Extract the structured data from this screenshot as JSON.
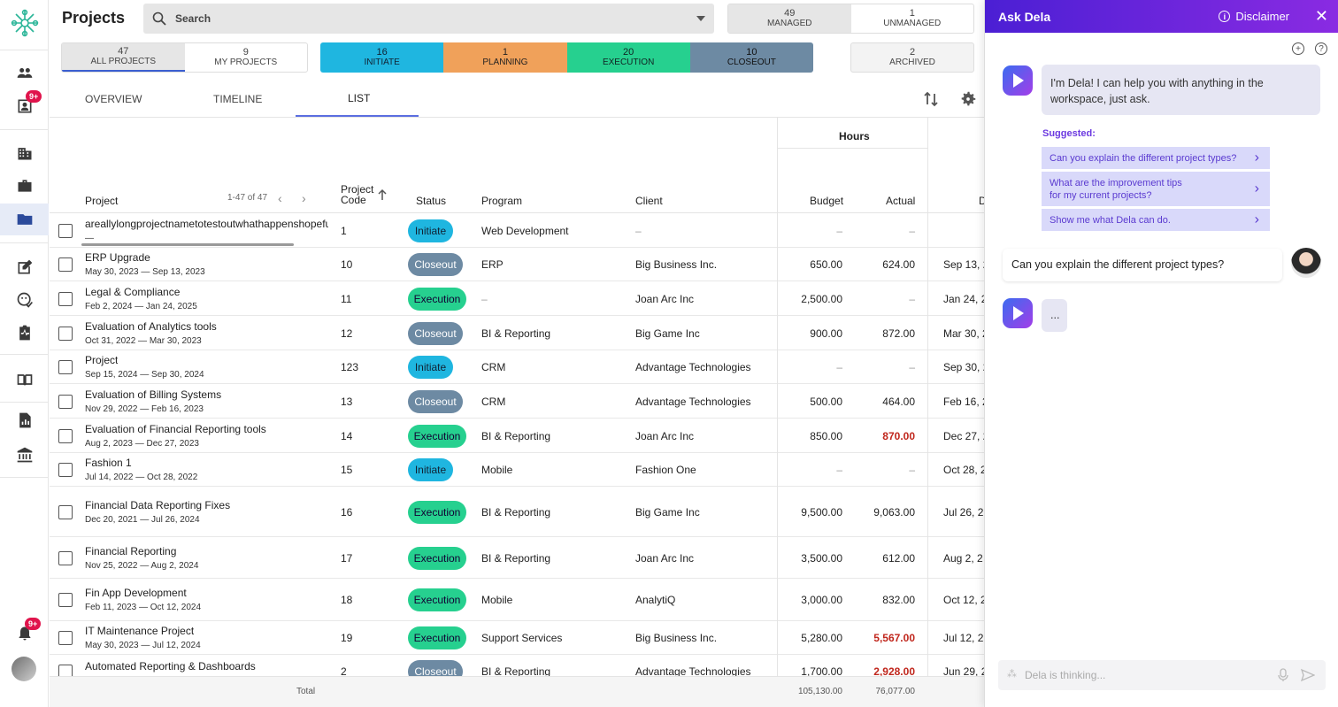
{
  "header": {
    "title": "Projects",
    "search_placeholder": "Search",
    "managed": {
      "count": "49",
      "label": "MANAGED"
    },
    "unmanaged": {
      "count": "1",
      "label": "UNMANAGED"
    }
  },
  "filters": {
    "all": {
      "count": "47",
      "label": "ALL PROJECTS"
    },
    "mine": {
      "count": "9",
      "label": "MY PROJECTS"
    },
    "initiate": {
      "count": "16",
      "label": "INITIATE"
    },
    "planning": {
      "count": "1",
      "label": "PLANNING"
    },
    "execution": {
      "count": "20",
      "label": "EXECUTION"
    },
    "closeout": {
      "count": "10",
      "label": "CLOSEOUT"
    },
    "archived": {
      "count": "2",
      "label": "ARCHIVED"
    }
  },
  "tabs": [
    "OVERVIEW",
    "TIMELINE",
    "LIST"
  ],
  "rail_badges": {
    "top": "9+",
    "bottom": "9+"
  },
  "table": {
    "group_hours": "Hours",
    "col_project": "Project",
    "pagination": "1-47 of 47",
    "col_code_1": "Project",
    "col_code_2": "Code",
    "col_status": "Status",
    "col_program": "Program",
    "col_client": "Client",
    "col_budget": "Budget",
    "col_actual": "Actual",
    "col_due": "D",
    "total_label": "Total",
    "total_budget": "105,130.00",
    "total_actual": "76,077.00",
    "rows": [
      {
        "name": "areallylongprojectnametotestoutwhathappenshopefully",
        "dates": "—",
        "code": "1",
        "status": "Initiate",
        "program": "Web Development",
        "client": "–",
        "budget": "–",
        "actual": "–",
        "due": ""
      },
      {
        "name": "ERP Upgrade",
        "dates": "May 30, 2023 — Sep 13, 2023",
        "code": "10",
        "status": "Closeout",
        "program": "ERP",
        "client": "Big Business Inc.",
        "budget": "650.00",
        "actual": "624.00",
        "due": "Sep 13, 2"
      },
      {
        "name": "Legal & Compliance",
        "dates": "Feb 2, 2024 — Jan 24, 2025",
        "code": "11",
        "status": "Execution",
        "program": "–",
        "client": "Joan Arc Inc",
        "budget": "2,500.00",
        "actual": "–",
        "due": "Jan 24, 2"
      },
      {
        "name": "Evaluation of Analytics tools",
        "dates": "Oct 31, 2022 — Mar 30, 2023",
        "code": "12",
        "status": "Closeout",
        "program": "BI & Reporting",
        "client": "Big Game Inc",
        "budget": "900.00",
        "actual": "872.00",
        "due": "Mar 30, 2"
      },
      {
        "name": "Project",
        "dates": "Sep 15, 2024 — Sep 30, 2024",
        "code": "123",
        "status": "Initiate",
        "program": "CRM",
        "client": "Advantage Technologies",
        "budget": "–",
        "actual": "–",
        "due": "Sep 30, 2"
      },
      {
        "name": "Evaluation of Billing Systems",
        "dates": "Nov 29, 2022 — Feb 16, 2023",
        "code": "13",
        "status": "Closeout",
        "program": "CRM",
        "client": "Advantage Technologies",
        "budget": "500.00",
        "actual": "464.00",
        "due": "Feb 16, 2"
      },
      {
        "name": "Evaluation of Financial Reporting tools",
        "dates": "Aug 2, 2023 — Dec 27, 2023",
        "code": "14",
        "status": "Execution",
        "program": "BI & Reporting",
        "client": "Joan Arc Inc",
        "budget": "850.00",
        "actual": "870.00",
        "due": "Dec 27, 2"
      },
      {
        "name": "Fashion 1",
        "dates": "Jul 14, 2022 — Oct 28, 2022",
        "code": "15",
        "status": "Initiate",
        "program": "Mobile",
        "client": "Fashion One",
        "budget": "–",
        "actual": "–",
        "due": "Oct 28, 2"
      },
      {
        "name": "Financial Data Reporting Fixes",
        "dates": "Dec 20, 2021 — Jul 26, 2024",
        "code": "16",
        "status": "Execution",
        "program": "BI & Reporting",
        "client": "Big Game Inc",
        "budget": "9,500.00",
        "actual": "9,063.00",
        "due": "Jul 26, 2"
      },
      {
        "name": "Financial Reporting",
        "dates": "Nov 25, 2022 — Aug 2, 2024",
        "code": "17",
        "status": "Execution",
        "program": "BI & Reporting",
        "client": "Joan Arc Inc",
        "budget": "3,500.00",
        "actual": "612.00",
        "due": "Aug 2, 2"
      },
      {
        "name": "Fin App Development",
        "dates": "Feb 11, 2023 — Oct 12, 2024",
        "code": "18",
        "status": "Execution",
        "program": "Mobile",
        "client": "AnalytiQ",
        "budget": "3,000.00",
        "actual": "832.00",
        "due": "Oct 12, 2"
      },
      {
        "name": "IT Maintenance Project",
        "dates": "May 30, 2023 — Jul 12, 2024",
        "code": "19",
        "status": "Execution",
        "program": "Support Services",
        "client": "Big Business Inc.",
        "budget": "5,280.00",
        "actual": "5,567.00",
        "due": "Jul 12, 2"
      },
      {
        "name": "Automated Reporting & Dashboards",
        "dates": "",
        "code": "2",
        "status": "Closeout",
        "program": "BI & Reporting",
        "client": "Advantage Technologies",
        "budget": "1,700.00",
        "actual": "2,928.00",
        "due": "Jun 29, 2"
      }
    ]
  },
  "chat": {
    "title": "Ask Dela",
    "disclaimer": "Disclaimer",
    "greeting_1": "I'm Dela! I can help you with anything in the",
    "greeting_2": "workspace, just ask.",
    "suggested_label": "Suggested:",
    "suggestions": [
      "Can you explain the different project types?",
      "What are the improvement tips",
      "for my current projects?",
      "Show me what Dela can do."
    ],
    "user_message": "Can you explain the different project types?",
    "typing": "...",
    "input_placeholder": "Dela is thinking..."
  }
}
